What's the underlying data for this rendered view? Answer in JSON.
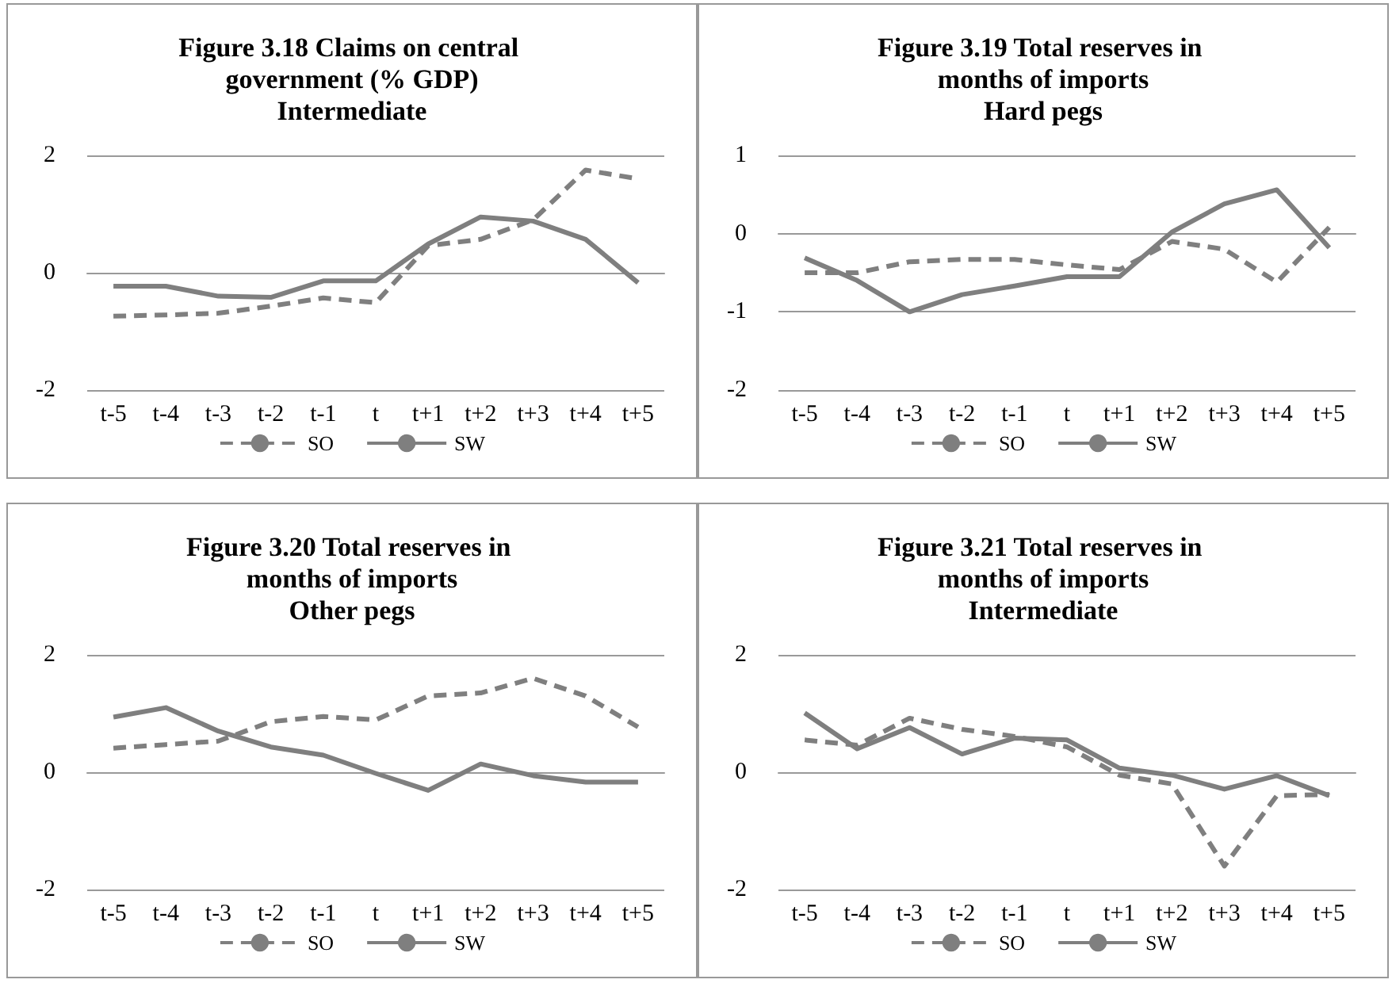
{
  "chart_data": [
    {
      "type": "line",
      "title": "Figure 3.18 Claims on central government (% GDP)",
      "subtitle": "Intermediate",
      "categories": [
        "t-5",
        "t-4",
        "t-3",
        "t-2",
        "t-1",
        "t",
        "t+1",
        "t+2",
        "t+3",
        "t+4",
        "t+5"
      ],
      "series": [
        {
          "name": "SO",
          "color": "#7f7f7f",
          "line_style": "dashed",
          "values": [
            -0.74,
            -0.72,
            -0.69,
            -0.57,
            -0.43,
            -0.51,
            0.46,
            0.57,
            0.9,
            1.75,
            1.6
          ]
        },
        {
          "name": "SW",
          "color": "#7f7f7f",
          "line_style": "solid",
          "values": [
            -0.23,
            -0.23,
            -0.4,
            -0.42,
            -0.14,
            -0.14,
            0.49,
            0.95,
            0.88,
            0.57,
            -0.17
          ]
        }
      ],
      "ylim": [
        -2,
        2
      ],
      "yticks": [
        -2,
        0,
        2
      ],
      "grid": "y",
      "legend": "bottom",
      "marker": "none"
    },
    {
      "type": "line",
      "title": "Figure 3.19 Total reserves in months of imports",
      "subtitle": "Hard pegs",
      "categories": [
        "t-5",
        "t-4",
        "t-3",
        "t-2",
        "t-1",
        "t",
        "t+1",
        "t+2",
        "t+3",
        "t+4",
        "t+5"
      ],
      "series": [
        {
          "name": "SO",
          "color": "#7f7f7f",
          "line_style": "dashed",
          "values": [
            -0.5,
            -0.5,
            -0.36,
            -0.33,
            -0.33,
            -0.4,
            -0.46,
            -0.1,
            -0.2,
            -0.62,
            0.08
          ]
        },
        {
          "name": "SW",
          "color": "#7f7f7f",
          "line_style": "solid",
          "values": [
            -0.31,
            -0.6,
            -1.0,
            -0.78,
            -0.67,
            -0.55,
            -0.55,
            0.02,
            0.38,
            0.56,
            -0.18
          ]
        }
      ],
      "ylim": [
        -2,
        1
      ],
      "yticks": [
        -2,
        -1,
        0,
        1
      ],
      "grid": "y",
      "legend": "bottom",
      "marker": "none"
    },
    {
      "type": "line",
      "title": "Figure 3.20 Total reserves in months of imports",
      "subtitle": "Other pegs",
      "categories": [
        "t-5",
        "t-4",
        "t-3",
        "t-2",
        "t-1",
        "t",
        "t+1",
        "t+2",
        "t+3",
        "t+4",
        "t+5"
      ],
      "series": [
        {
          "name": "SO",
          "color": "#7f7f7f",
          "line_style": "dashed",
          "values": [
            0.41,
            0.47,
            0.53,
            0.86,
            0.95,
            0.89,
            1.3,
            1.35,
            1.6,
            1.3,
            0.77
          ]
        },
        {
          "name": "SW",
          "color": "#7f7f7f",
          "line_style": "solid",
          "values": [
            0.94,
            1.1,
            0.7,
            0.43,
            0.29,
            -0.02,
            -0.31,
            0.14,
            -0.06,
            -0.17,
            -0.17
          ]
        }
      ],
      "ylim": [
        -2,
        2
      ],
      "yticks": [
        -2,
        0,
        2
      ],
      "grid": "y",
      "legend": "bottom",
      "marker": "none"
    },
    {
      "type": "line",
      "title": "Figure 3.21 Total reserves in months of imports",
      "subtitle": "Intermediate",
      "categories": [
        "t-5",
        "t-4",
        "t-3",
        "t-2",
        "t-1",
        "t",
        "t+1",
        "t+2",
        "t+3",
        "t+4",
        "t+5"
      ],
      "series": [
        {
          "name": "SO",
          "color": "#7f7f7f",
          "line_style": "dashed",
          "values": [
            0.55,
            0.46,
            0.92,
            0.73,
            0.61,
            0.43,
            -0.05,
            -0.2,
            -1.6,
            -0.4,
            -0.38
          ]
        },
        {
          "name": "SW",
          "color": "#7f7f7f",
          "line_style": "solid",
          "values": [
            1.01,
            0.4,
            0.76,
            0.31,
            0.58,
            0.55,
            0.07,
            -0.05,
            -0.29,
            -0.06,
            -0.4
          ]
        }
      ],
      "ylim": [
        -2,
        2
      ],
      "yticks": [
        -2,
        0,
        2
      ],
      "grid": "y",
      "legend": "bottom",
      "marker": "none"
    }
  ]
}
